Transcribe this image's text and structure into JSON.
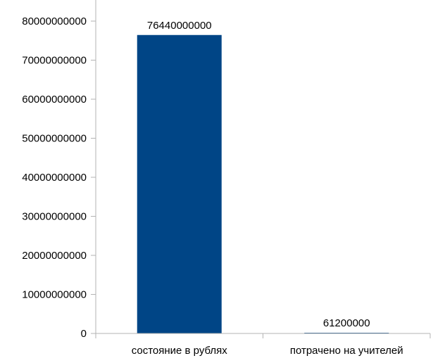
{
  "chart_data": {
    "type": "bar",
    "categories": [
      "состояние в рублях",
      "потрачено на учителей"
    ],
    "values": [
      76440000000,
      61200000
    ],
    "data_labels": [
      "76440000000",
      "61200000"
    ],
    "ylim": [
      0,
      80000000000
    ],
    "yticks": [
      0,
      10000000000,
      20000000000,
      30000000000,
      40000000000,
      50000000000,
      60000000000,
      70000000000,
      80000000000
    ],
    "ytick_labels": [
      "0",
      "10000000000",
      "20000000000",
      "30000000000",
      "40000000000",
      "50000000000",
      "60000000000",
      "70000000000",
      "80000000000"
    ],
    "grid": false,
    "legend": "none",
    "bar_color": "#004586",
    "axis_color": "#b3b3b3"
  }
}
